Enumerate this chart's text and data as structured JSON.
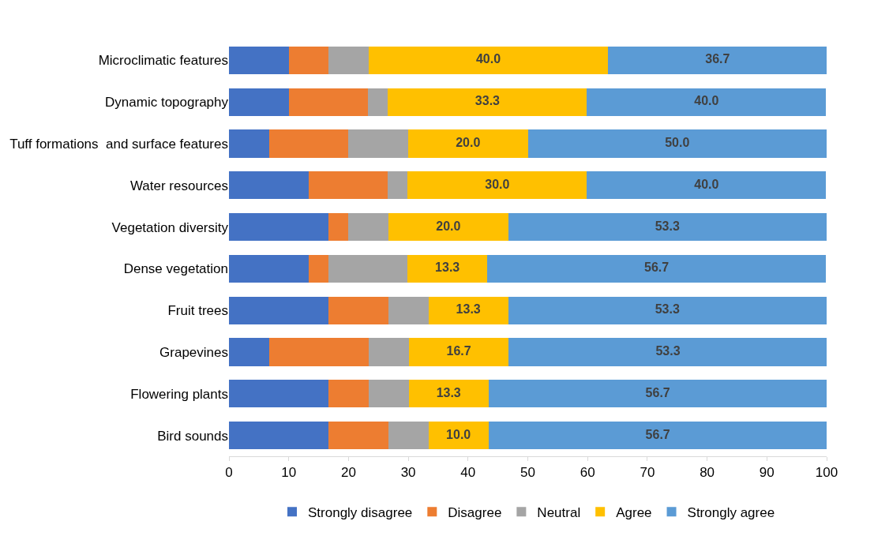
{
  "chart_data": {
    "type": "bar",
    "orientation": "horizontal",
    "stacked": true,
    "legend": "bottom",
    "categories": [
      "Microclimatic features",
      "Dynamic topography",
      "Tuff formations  and surface features",
      "Water resources",
      "Vegetation diversity",
      "Dense vegetation",
      "Fruit trees",
      "Grapevines",
      "Flowering plants",
      "Bird sounds"
    ],
    "xlim": [
      0,
      100
    ],
    "xticks": [
      0,
      10,
      20,
      30,
      40,
      50,
      60,
      70,
      80,
      90,
      100
    ],
    "series": [
      {
        "name": "Strongly disagree",
        "color": "#4472c4",
        "values": [
          10.0,
          10.0,
          6.7,
          13.3,
          16.7,
          13.3,
          16.7,
          6.7,
          16.7,
          16.7
        ]
      },
      {
        "name": "Disagree",
        "color": "#ed7d31",
        "values": [
          6.7,
          13.3,
          13.3,
          13.3,
          3.3,
          3.3,
          10.0,
          16.7,
          6.7,
          10.0
        ]
      },
      {
        "name": "Neutral",
        "color": "#a5a5a5",
        "values": [
          6.7,
          3.3,
          10.0,
          3.3,
          6.7,
          13.3,
          6.7,
          6.7,
          6.7,
          6.7
        ]
      },
      {
        "name": "Agree",
        "color": "#ffc000",
        "values": [
          40.0,
          33.3,
          20.0,
          30.0,
          20.0,
          13.3,
          13.3,
          16.7,
          13.3,
          10.0
        ],
        "value_labels": [
          "40.0",
          "33.3",
          "20.0",
          "30.0",
          "20.0",
          "13.3",
          "13.3",
          "16.7",
          "13.3",
          "10.0"
        ]
      },
      {
        "name": "Strongly agree",
        "color": "#5b9bd5",
        "values": [
          36.7,
          40.0,
          50.0,
          40.0,
          53.3,
          56.7,
          53.3,
          53.3,
          56.7,
          56.7
        ],
        "value_labels": [
          "36.7",
          "40.0",
          "50.0",
          "40.0",
          "53.3",
          "56.7",
          "53.3",
          "53.3",
          "56.7",
          "56.7"
        ]
      }
    ]
  }
}
